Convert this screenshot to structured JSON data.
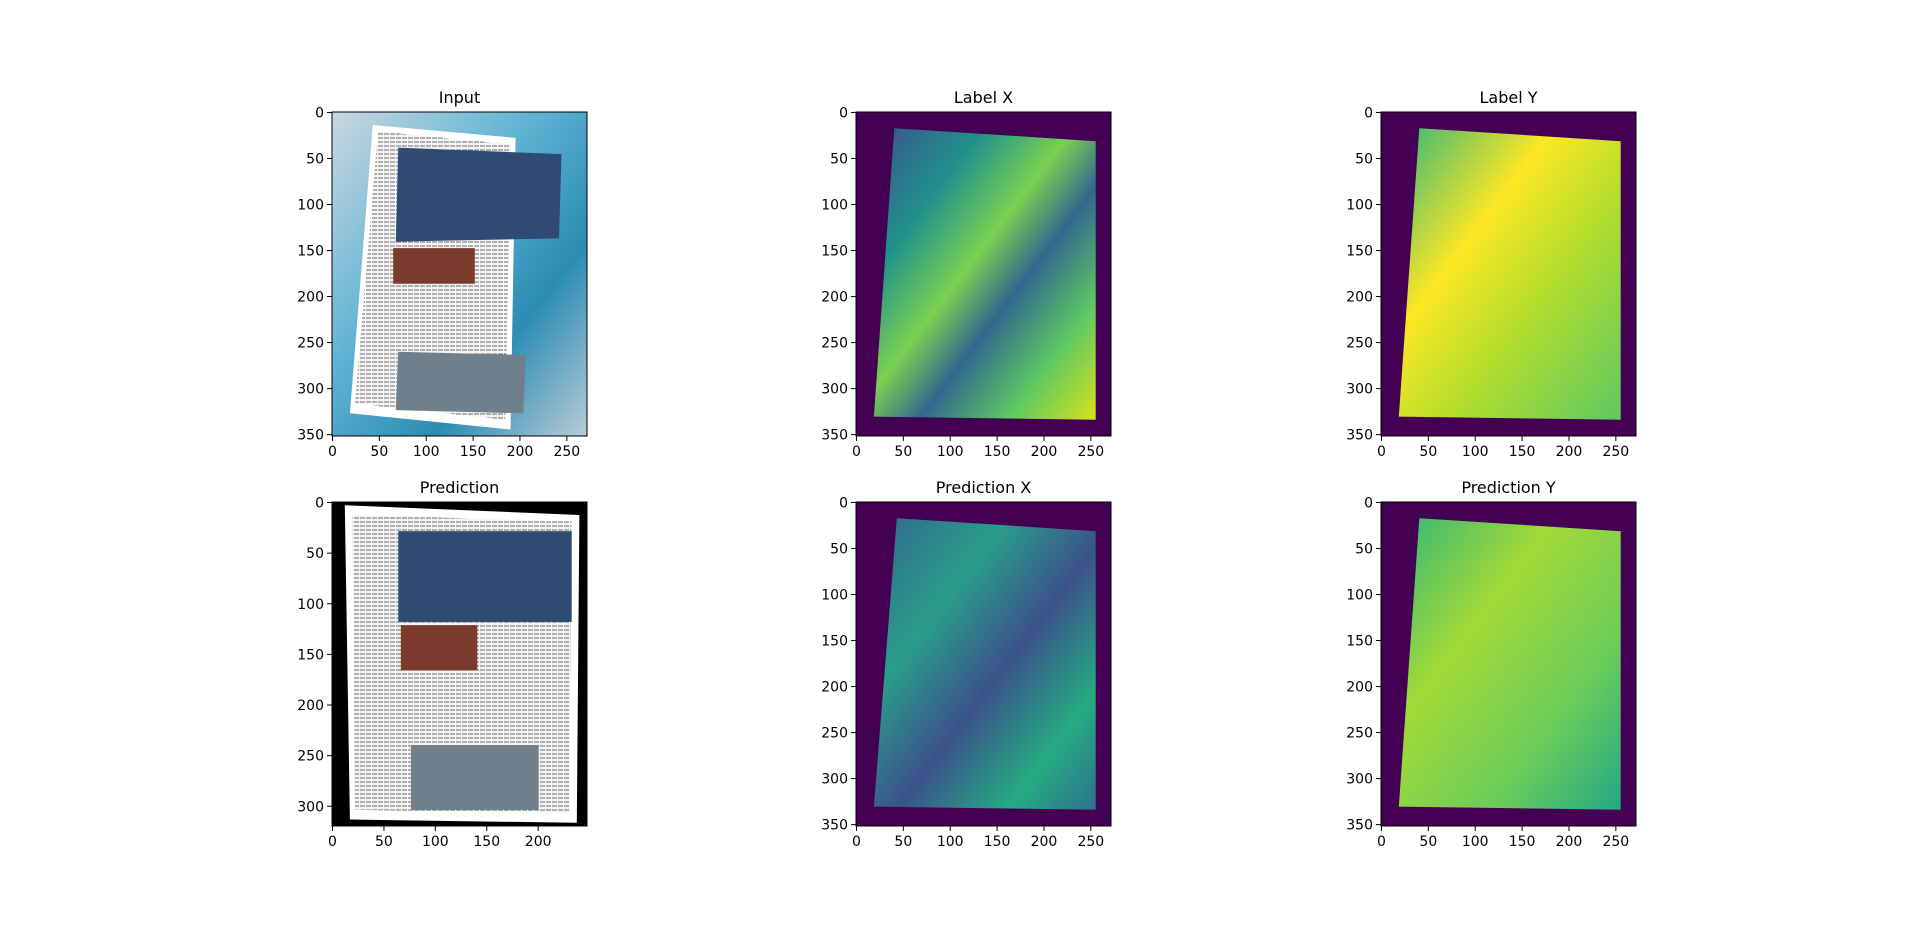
{
  "chart_data": [
    {
      "type": "image",
      "title": "Input",
      "xlim": [
        -0.5,
        271.5
      ],
      "ylim": [
        351.5,
        -0.5
      ],
      "xticks": [
        0,
        50,
        100,
        150,
        200,
        250
      ],
      "yticks": [
        0,
        50,
        100,
        150,
        200,
        250,
        300,
        350
      ]
    },
    {
      "type": "image",
      "title": "Label X",
      "xlim": [
        -0.5,
        271.5
      ],
      "ylim": [
        351.5,
        -0.5
      ],
      "xticks": [
        0,
        50,
        100,
        150,
        200,
        250
      ],
      "yticks": [
        0,
        50,
        100,
        150,
        200,
        250,
        300,
        350
      ]
    },
    {
      "type": "image",
      "title": "Label Y",
      "xlim": [
        -0.5,
        271.5
      ],
      "ylim": [
        351.5,
        -0.5
      ],
      "xticks": [
        0,
        50,
        100,
        150,
        200,
        250
      ],
      "yticks": [
        0,
        50,
        100,
        150,
        200,
        250,
        300,
        350
      ]
    },
    {
      "type": "image",
      "title": "Prediction",
      "xlim": [
        -0.5,
        247.5
      ],
      "ylim": [
        319.5,
        -0.5
      ],
      "xticks": [
        0,
        50,
        100,
        150,
        200
      ],
      "yticks": [
        0,
        50,
        100,
        150,
        200,
        250,
        300
      ]
    },
    {
      "type": "image",
      "title": "Prediction X",
      "xlim": [
        -0.5,
        271.5
      ],
      "ylim": [
        351.5,
        -0.5
      ],
      "xticks": [
        0,
        50,
        100,
        150,
        200,
        250
      ],
      "yticks": [
        0,
        50,
        100,
        150,
        200,
        250,
        300,
        350
      ]
    },
    {
      "type": "image",
      "title": "Prediction Y",
      "xlim": [
        -0.5,
        271.5
      ],
      "ylim": [
        351.5,
        -0.5
      ],
      "xticks": [
        0,
        50,
        100,
        150,
        200,
        250
      ],
      "yticks": [
        0,
        50,
        100,
        150,
        200,
        250,
        300,
        350
      ]
    }
  ]
}
